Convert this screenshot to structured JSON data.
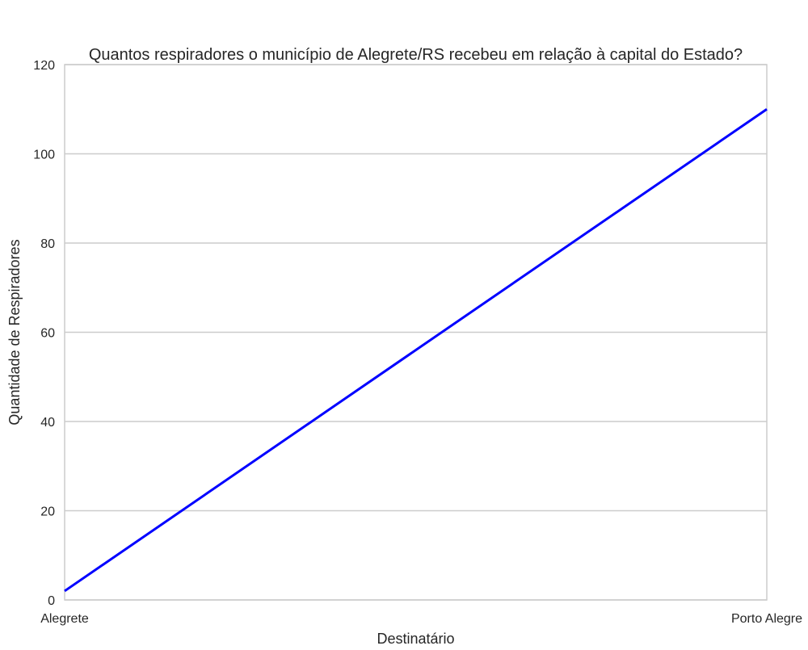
{
  "chart_data": {
    "type": "line",
    "title": "Quantos respiradores o município de Alegrete/RS recebeu em relação à capital do Estado?",
    "xlabel": "Destinatário",
    "ylabel": "Quantidade de Respiradores",
    "categories": [
      "Alegrete",
      "Porto Alegre"
    ],
    "series": [
      {
        "values": [
          2,
          110
        ],
        "color": "#0000ff"
      }
    ],
    "ylim": [
      0,
      120
    ],
    "yticks": [
      "0",
      "20",
      "40",
      "60",
      "80",
      "100",
      "120"
    ],
    "grid": "horizontal",
    "legend": "none"
  }
}
